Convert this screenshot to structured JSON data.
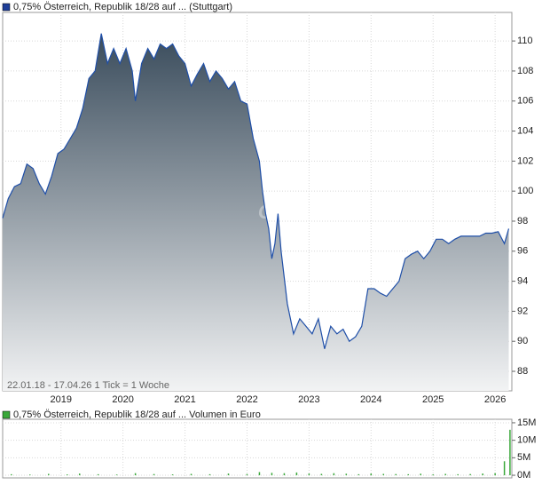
{
  "chart_data": [
    {
      "type": "area",
      "title": "0,75% Österreich, Republik 18/28 auf ... (Stuttgart)",
      "info": "22.01.18 - 17.04.26   1 Tick = 1 Woche",
      "watermark": "CHECK",
      "color": "#1f4fa8",
      "grid": true,
      "xlim": [
        2018.06,
        2026.27
      ],
      "xticks": [
        2019,
        2020,
        2021,
        2022,
        2023,
        2024,
        2025,
        2026
      ],
      "ylim": [
        86.7,
        111.9
      ],
      "yticks": [
        88,
        90,
        92,
        94,
        96,
        98,
        100,
        102,
        104,
        106,
        108,
        110
      ],
      "x": [
        2018.06,
        2018.15,
        2018.25,
        2018.35,
        2018.45,
        2018.55,
        2018.65,
        2018.75,
        2018.85,
        2018.95,
        2019.05,
        2019.15,
        2019.25,
        2019.35,
        2019.45,
        2019.55,
        2019.65,
        2019.75,
        2019.85,
        2019.95,
        2020.05,
        2020.15,
        2020.2,
        2020.3,
        2020.4,
        2020.5,
        2020.6,
        2020.7,
        2020.8,
        2020.9,
        2021.0,
        2021.1,
        2021.2,
        2021.3,
        2021.4,
        2021.5,
        2021.6,
        2021.7,
        2021.8,
        2021.9,
        2022.0,
        2022.1,
        2022.2,
        2022.25,
        2022.3,
        2022.35,
        2022.4,
        2022.45,
        2022.5,
        2022.55,
        2022.65,
        2022.75,
        2022.85,
        2022.95,
        2023.05,
        2023.15,
        2023.25,
        2023.35,
        2023.45,
        2023.55,
        2023.65,
        2023.75,
        2023.85,
        2023.95,
        2024.05,
        2024.15,
        2024.25,
        2024.35,
        2024.45,
        2024.55,
        2024.65,
        2024.75,
        2024.85,
        2024.95,
        2025.05,
        2025.15,
        2025.25,
        2025.35,
        2025.45,
        2025.55,
        2025.65,
        2025.75,
        2025.85,
        2025.95,
        2026.05,
        2026.15,
        2026.22
      ],
      "values": [
        98.2,
        99.5,
        100.3,
        100.5,
        101.8,
        101.5,
        100.5,
        99.8,
        101.0,
        102.5,
        102.8,
        103.5,
        104.2,
        105.5,
        107.5,
        108.0,
        110.5,
        108.5,
        109.5,
        108.5,
        109.5,
        108.0,
        106.0,
        108.5,
        109.5,
        108.8,
        109.8,
        109.5,
        109.8,
        109.0,
        108.5,
        107.0,
        107.8,
        108.5,
        107.3,
        108.0,
        107.5,
        106.8,
        107.3,
        106.0,
        105.8,
        103.5,
        102.0,
        100.0,
        98.5,
        97.5,
        95.5,
        96.5,
        98.5,
        96.0,
        92.5,
        90.5,
        91.5,
        91.0,
        90.5,
        91.5,
        89.5,
        91.0,
        90.5,
        90.8,
        90.0,
        90.3,
        91.0,
        93.5,
        93.5,
        93.2,
        93.0,
        93.5,
        94.0,
        95.5,
        95.8,
        96.0,
        95.5,
        96.0,
        96.8,
        96.8,
        96.5,
        96.8,
        97.0,
        97.0,
        97.0,
        97.0,
        97.2,
        97.2,
        97.3,
        96.5,
        97.5
      ]
    },
    {
      "type": "bar",
      "title": "0,75% Österreich, Republik 18/28 auf ... Volumen in Euro",
      "color": "#3aa83a",
      "grid": true,
      "xlim": [
        2018.06,
        2026.27
      ],
      "xticks": [
        2019,
        2020,
        2021,
        2022,
        2023,
        2024,
        2025,
        2026
      ],
      "ylim": [
        -750000,
        16000000
      ],
      "yticks": [
        {
          "value": 0,
          "label": "0M"
        },
        {
          "value": 5000000,
          "label": "5M"
        },
        {
          "value": 10000000,
          "label": "10M"
        },
        {
          "value": 15000000,
          "label": "15M"
        }
      ],
      "x": [
        2018.2,
        2018.5,
        2018.8,
        2019.1,
        2019.3,
        2019.6,
        2019.9,
        2020.2,
        2020.5,
        2020.8,
        2021.1,
        2021.4,
        2021.7,
        2022.0,
        2022.2,
        2022.4,
        2022.6,
        2022.8,
        2023.0,
        2023.2,
        2023.4,
        2023.6,
        2023.8,
        2024.0,
        2024.2,
        2024.4,
        2024.6,
        2024.8,
        2025.0,
        2025.2,
        2025.4,
        2025.6,
        2025.8,
        2026.0,
        2026.15,
        2026.24
      ],
      "values": [
        300000,
        200000,
        400000,
        250000,
        500000,
        300000,
        200000,
        600000,
        350000,
        250000,
        400000,
        300000,
        500000,
        350000,
        900000,
        700000,
        600000,
        800000,
        500000,
        400000,
        600000,
        450000,
        300000,
        500000,
        400000,
        350000,
        300000,
        450000,
        250000,
        400000,
        300000,
        350000,
        500000,
        600000,
        4000000,
        13000000
      ]
    }
  ]
}
